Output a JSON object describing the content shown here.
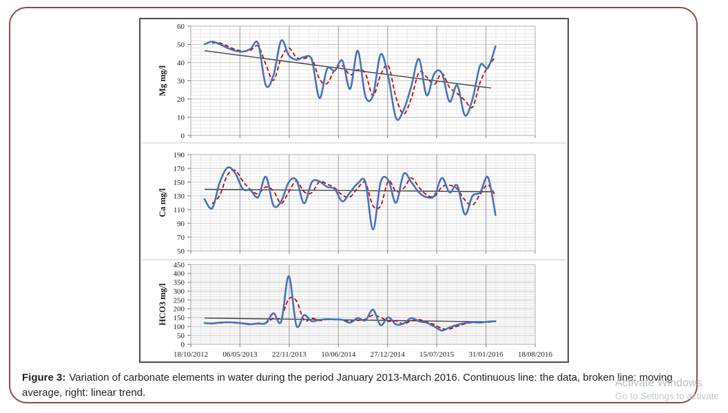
{
  "caption": {
    "label": "Figure 3:",
    "line1": "Variation of carbonate elements in water during the period January 2013-March 2016. Continuous line: the data, broken line: moving",
    "line2": "average, right: linear trend."
  },
  "watermark": {
    "line1": "Activate Windows",
    "line2": "Go to Settings to activate"
  },
  "colors": {
    "data_line": "#4472b8",
    "moving_average_line": "#c00000",
    "trend_line": "#3d3d3d",
    "page_border": "#8d4a3c",
    "figure_border": "#4a4a4a"
  },
  "x_axis": {
    "tick_labels": [
      "18/10/2012",
      "06/05/2013",
      "22/11/2013",
      "10/06/2014",
      "27/12/2014",
      "15/07/2015",
      "31/01/2016",
      "18/08/2016"
    ],
    "points_description": "monthly values, January 2013 - March 2016",
    "minor_divisions_per_interval": 5,
    "data_start_fraction": 0.04,
    "data_end_fraction": 0.885
  },
  "chart_data": [
    {
      "type": "line",
      "panel": "top",
      "ylabel": "Mg mg/l",
      "ylim": [
        0,
        60
      ],
      "ytick_step": 10,
      "yminor_step": 2,
      "grid": true,
      "legend": "none",
      "series": [
        {
          "name": "data",
          "style": "solid",
          "color": "#4472b8",
          "values": [
            50,
            51.5,
            50,
            48,
            46.5,
            46,
            47.5,
            50.5,
            27.5,
            33,
            52,
            44,
            41.5,
            43,
            41.5,
            20.5,
            36.5,
            35.5,
            41,
            25.5,
            46.5,
            21.5,
            22,
            44.5,
            32,
            9.5,
            14,
            27,
            42,
            22,
            34,
            34,
            18.5,
            27.5,
            11,
            20,
            38.5,
            37,
            49
          ]
        },
        {
          "name": "moving average",
          "style": "dashed",
          "color": "#c00000",
          "derived": "trailing moving average of data",
          "window": 2
        },
        {
          "name": "linear trend",
          "style": "straight",
          "color": "#3d3d3d",
          "start": 46.5,
          "end": 26
        }
      ]
    },
    {
      "type": "line",
      "panel": "middle",
      "ylabel": "Ca mg/l",
      "ylim": [
        50,
        190
      ],
      "ytick_step": 20,
      "yminor_step": 4,
      "grid": true,
      "legend": "none",
      "series": [
        {
          "name": "data",
          "style": "solid",
          "color": "#4472b8",
          "values": [
            125,
            112,
            150,
            171,
            163,
            140,
            138,
            128,
            158,
            116,
            122,
            150,
            153,
            119,
            150,
            151,
            143,
            140,
            122,
            135,
            148,
            150,
            81,
            150,
            153,
            120,
            162,
            150,
            135,
            128,
            130,
            156,
            135,
            145,
            103,
            130,
            135,
            157,
            102
          ]
        },
        {
          "name": "moving average",
          "style": "dashed",
          "color": "#c00000",
          "derived": "trailing moving average of data",
          "window": 2
        },
        {
          "name": "linear trend",
          "style": "straight",
          "color": "#3d3d3d",
          "start": 139.5,
          "end": 136
        }
      ]
    },
    {
      "type": "line",
      "panel": "bottom",
      "ylabel": "HCO3 mg/l",
      "ylim": [
        0,
        450
      ],
      "ytick_step": 50,
      "yminor_step": 10,
      "grid": true,
      "legend": "none",
      "series": [
        {
          "name": "data",
          "style": "solid",
          "color": "#4472b8",
          "values": [
            120,
            118,
            122,
            124,
            122,
            118,
            113,
            118,
            120,
            175,
            127,
            385,
            105,
            165,
            130,
            138,
            142,
            140,
            138,
            122,
            148,
            135,
            195,
            108,
            152,
            112,
            118,
            148,
            130,
            122,
            100,
            78,
            95,
            110,
            120,
            125,
            122,
            128,
            130
          ]
        },
        {
          "name": "moving average",
          "style": "dashed",
          "color": "#c00000",
          "derived": "trailing moving average of data",
          "window": 2
        },
        {
          "name": "linear trend",
          "style": "straight",
          "color": "#3d3d3d",
          "start": 148,
          "end": 127
        }
      ]
    }
  ]
}
